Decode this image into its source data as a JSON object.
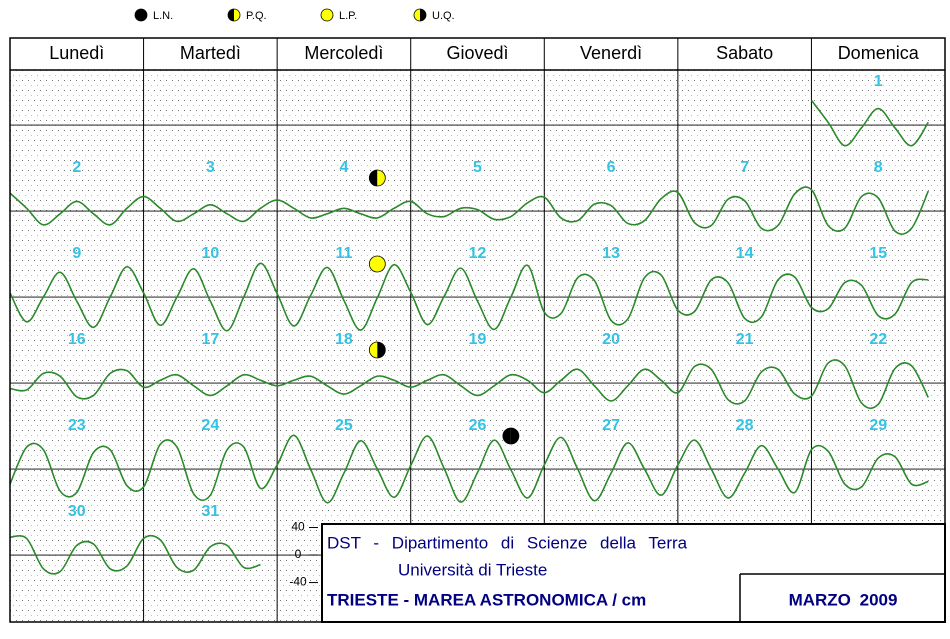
{
  "info": {
    "institute": "DST - Dipartimento di Scienze della Terra",
    "university": "Università di Trieste"
  },
  "chart_data": {
    "type": "tide-calendar",
    "title": "TRIESTE - MAREA ASTRONOMICA / cm",
    "month": "MARZO 2009",
    "weekdays": [
      "Lunedì",
      "Martedì",
      "Mercoledì",
      "Giovedì",
      "Venerdì",
      "Sabato",
      "Domenica"
    ],
    "color": "#2a8a2a",
    "ylim": [
      -45,
      80
    ],
    "yticks": [
      40,
      0,
      -40
    ],
    "hours": [
      0,
      3,
      6,
      9,
      12,
      15,
      18,
      21
    ],
    "moon_legend": [
      {
        "label": "L.N.",
        "colors": [
          "#000000",
          "#000000"
        ]
      },
      {
        "label": "P.Q.",
        "colors": [
          "#000000",
          "#ffff00"
        ]
      },
      {
        "label": "L.P.",
        "colors": [
          "#ffff00",
          "#ffff00"
        ]
      },
      {
        "label": "U.Q.",
        "colors": [
          "#ffff00",
          "#000000"
        ]
      }
    ],
    "moon_phases": [
      {
        "phase": "P.Q.",
        "day": 4
      },
      {
        "phase": "L.P.",
        "day": 11
      },
      {
        "phase": "U.Q.",
        "day": 18
      },
      {
        "phase": "L.N.",
        "day": 26
      }
    ],
    "days": [
      {
        "day": 1,
        "values": [
          36,
          4,
          -30,
          -4,
          24,
          -4,
          -30,
          4
        ]
      },
      {
        "day": 2,
        "values": [
          26,
          4,
          -20,
          -4,
          14,
          -4,
          -20,
          4
        ]
      },
      {
        "day": 3,
        "values": [
          21,
          4,
          -15,
          -4,
          9,
          -4,
          -15,
          4
        ]
      },
      {
        "day": 4,
        "values": [
          16,
          4,
          -10,
          -4,
          4,
          -4,
          -10,
          4
        ]
      },
      {
        "day": 5,
        "values": [
          14,
          -4,
          -8,
          4,
          2,
          -12,
          -8,
          12
        ]
      },
      {
        "day": 6,
        "values": [
          20,
          -10,
          -14,
          10,
          8,
          -18,
          -14,
          18
        ]
      },
      {
        "day": 7,
        "values": [
          27,
          -17,
          -21,
          17,
          15,
          -25,
          -21,
          25
        ]
      },
      {
        "day": 8,
        "values": [
          31,
          -21,
          -25,
          21,
          19,
          -29,
          -25,
          29
        ]
      },
      {
        "day": 9,
        "values": [
          6,
          -36,
          0,
          36,
          -6,
          -44,
          0,
          44
        ]
      },
      {
        "day": 10,
        "values": [
          6,
          -41,
          0,
          41,
          -6,
          -49,
          0,
          49
        ]
      },
      {
        "day": 11,
        "values": [
          5,
          -42,
          2,
          43,
          -5,
          -48,
          -1,
          47
        ]
      },
      {
        "day": 12,
        "values": [
          7,
          -40,
          1,
          42,
          -6,
          -47,
          0,
          46
        ]
      },
      {
        "day": 13,
        "values": [
          -22,
          -24,
          28,
          24,
          -34,
          -32,
          28,
          32
        ]
      },
      {
        "day": 14,
        "values": [
          -19,
          -21,
          25,
          21,
          -31,
          -29,
          25,
          29
        ]
      },
      {
        "day": 15,
        "values": [
          -15,
          -17,
          21,
          17,
          -27,
          -25,
          21,
          25
        ]
      },
      {
        "day": 16,
        "values": [
          -8,
          -10,
          14,
          10,
          -20,
          -18,
          14,
          18
        ]
      },
      {
        "day": 17,
        "values": [
          -6,
          4,
          12,
          -4,
          -18,
          -4,
          12,
          4
        ]
      },
      {
        "day": 18,
        "values": [
          -4,
          4,
          10,
          -4,
          -16,
          -4,
          10,
          4
        ]
      },
      {
        "day": 19,
        "values": [
          -6,
          4,
          12,
          -4,
          -18,
          -4,
          12,
          4
        ]
      },
      {
        "day": 20,
        "values": [
          -14,
          4,
          20,
          -4,
          -26,
          -4,
          20,
          4
        ]
      },
      {
        "day": 21,
        "values": [
          -14,
          24,
          20,
          -24,
          -26,
          16,
          20,
          -16
        ]
      },
      {
        "day": 22,
        "values": [
          -19,
          29,
          25,
          -29,
          -31,
          21,
          25,
          -21
        ]
      },
      {
        "day": 23,
        "values": [
          -22,
          32,
          28,
          -32,
          -34,
          24,
          28,
          -24
        ]
      },
      {
        "day": 24,
        "values": [
          -26,
          36,
          32,
          -36,
          -38,
          28,
          32,
          -28
        ]
      },
      {
        "day": 25,
        "values": [
          6,
          49,
          0,
          -49,
          -6,
          41,
          0,
          -41
        ]
      },
      {
        "day": 26,
        "values": [
          5,
          48,
          1,
          -48,
          -5,
          42,
          -1,
          -42
        ]
      },
      {
        "day": 27,
        "values": [
          6,
          46,
          0,
          -46,
          -6,
          38,
          0,
          -38
        ]
      },
      {
        "day": 28,
        "values": [
          6,
          42,
          0,
          -42,
          -6,
          34,
          0,
          -34
        ]
      },
      {
        "day": 29,
        "values": [
          28,
          26,
          -22,
          -26,
          16,
          18,
          -22,
          -18
        ]
      },
      {
        "day": 30,
        "values": [
          26,
          24,
          -20,
          -24,
          14,
          16,
          -20,
          -16
        ]
      },
      {
        "day": 31,
        "values": [
          24,
          22,
          -18,
          -22,
          12,
          14,
          -18,
          -14
        ]
      }
    ]
  }
}
